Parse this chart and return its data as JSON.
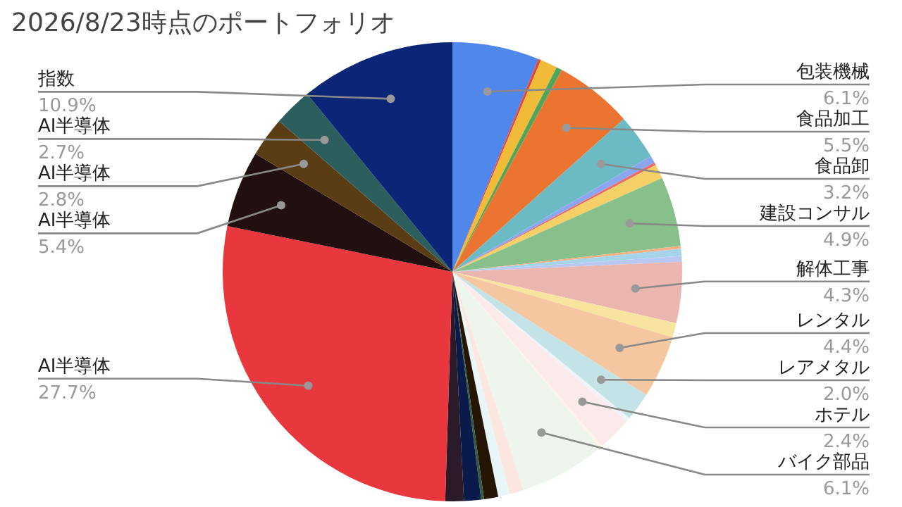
{
  "chart_data": {
    "type": "pie",
    "title": "2026/8/23時点のポートフォリオ",
    "categories": [
      "包装機械",
      null,
      null,
      null,
      "食品加工",
      "食品卸",
      null,
      null,
      null,
      "建設コンサル",
      null,
      null,
      null,
      "解体工事",
      null,
      "レンタル",
      "レアメタル",
      null,
      "ホテル",
      null,
      "バイク部品",
      null,
      null,
      null,
      null,
      null,
      null,
      "AI半導体",
      "AI半導体",
      "AI半導体",
      "AI半導体",
      "指数"
    ],
    "values": [
      6.1,
      0.2,
      1.2,
      0.4,
      5.5,
      3.2,
      0.5,
      0.2,
      1.0,
      4.9,
      0.2,
      0.5,
      0.4,
      4.3,
      1.0,
      4.4,
      2.0,
      0.3,
      2.4,
      0.2,
      6.1,
      1.0,
      0.8,
      1.0,
      0.2,
      1.2,
      1.3,
      27.7,
      5.4,
      2.8,
      2.7,
      10.9
    ],
    "value_labels": [
      "6.1%",
      null,
      null,
      null,
      "5.5%",
      "3.2%",
      null,
      null,
      null,
      "4.9%",
      null,
      null,
      null,
      "4.3%",
      null,
      "4.4%",
      "2.0%",
      null,
      "2.4%",
      null,
      "6.1%",
      null,
      null,
      null,
      null,
      null,
      null,
      "27.7%",
      "5.4%",
      "2.8%",
      "2.7%",
      "10.9%"
    ],
    "colors": [
      "#5087ea",
      "#e8453c",
      "#f1bb3a",
      "#4fa65a",
      "#eb7530",
      "#6cbbc4",
      "#8aa6f0",
      "#e86c6c",
      "#f5d066",
      "#87c08a",
      "#f4b183",
      "#a5d4ea",
      "#b9c7f3",
      "#ebb5b0",
      "#f8e39f",
      "#f5c7a0",
      "#c3e3e6",
      "#f0f4fa",
      "#faeaea",
      "#fdf3ea",
      "#edf5ed",
      "#fbe7df",
      "#e8f6f8",
      "#241505",
      "#345a40",
      "#0a1a4a",
      "#2a1a2a",
      "#e8383d",
      "#221010",
      "#5a3d15",
      "#2d5e5e",
      "#0b2577"
    ]
  }
}
